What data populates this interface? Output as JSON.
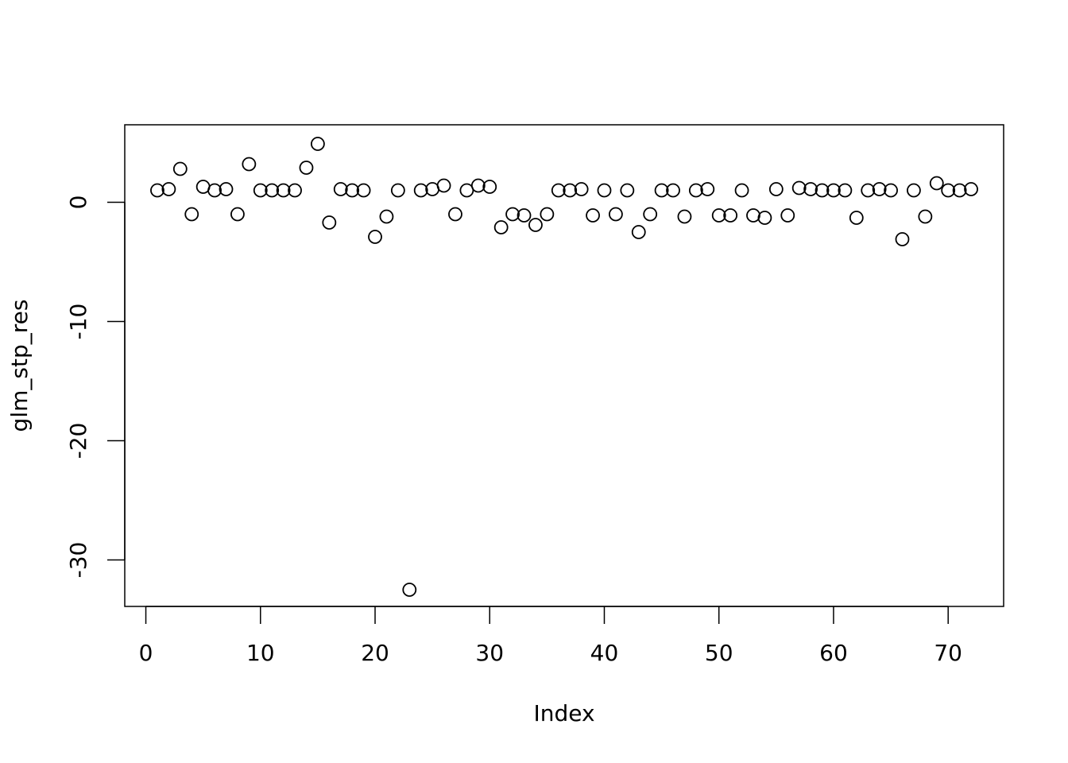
{
  "chart_data": {
    "type": "scatter",
    "x_label": "Index",
    "y_label": "glm_stp_res",
    "x": [
      1,
      2,
      3,
      4,
      5,
      6,
      7,
      8,
      9,
      10,
      11,
      12,
      13,
      14,
      15,
      16,
      17,
      18,
      19,
      20,
      21,
      22,
      23,
      24,
      25,
      26,
      27,
      28,
      29,
      30,
      31,
      32,
      33,
      34,
      35,
      36,
      37,
      38,
      39,
      40,
      41,
      42,
      43,
      44,
      45,
      46,
      47,
      48,
      49,
      50,
      51,
      52,
      53,
      54,
      55,
      56,
      57,
      58,
      59,
      60,
      61,
      62,
      63,
      64,
      65,
      66,
      67,
      68,
      69,
      70,
      71,
      72
    ],
    "values": [
      1.0,
      1.1,
      2.8,
      -1.0,
      1.3,
      1.0,
      1.1,
      -1.0,
      3.2,
      1.0,
      1.0,
      1.0,
      1.0,
      2.9,
      4.9,
      -1.7,
      1.1,
      1.0,
      1.0,
      -2.9,
      -1.2,
      1.0,
      -32.5,
      1.0,
      1.1,
      1.4,
      -1.0,
      1.0,
      1.4,
      1.3,
      -2.1,
      -1.0,
      -1.1,
      -1.9,
      -1.0,
      1.0,
      1.0,
      1.1,
      -1.1,
      1.0,
      -1.0,
      1.0,
      -2.5,
      -1.0,
      1.0,
      1.0,
      -1.2,
      1.0,
      1.1,
      -1.1,
      -1.1,
      1.0,
      -1.1,
      -1.3,
      1.1,
      -1.1,
      1.2,
      1.1,
      1.0,
      1.0,
      1.0,
      -1.3,
      1.0,
      1.1,
      1.0,
      -3.1,
      1.0,
      -1.2,
      1.6,
      1.0,
      1.0,
      1.1
    ],
    "color": "#000000",
    "xlim": [
      -1.84,
      74.84
    ],
    "xticks": [
      0,
      10,
      20,
      30,
      40,
      50,
      60,
      70
    ],
    "ylim": [
      -33.9,
      6.5
    ],
    "yticks": [
      -30,
      -20,
      -10,
      0
    ]
  }
}
